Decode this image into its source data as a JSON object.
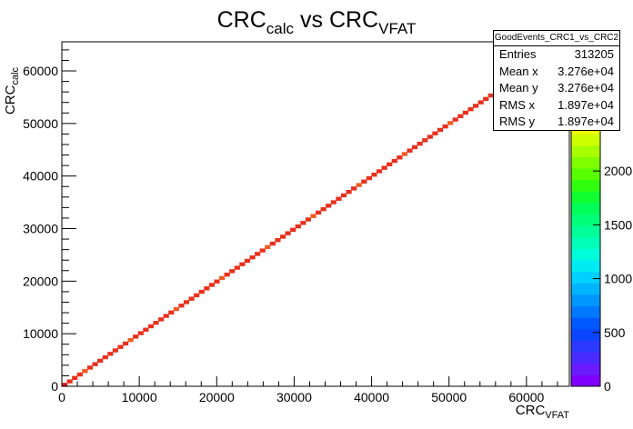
{
  "chart_data": {
    "type": "heatmap",
    "title": {
      "main": "CRC",
      "main_sub": "calc",
      "joiner": " vs ",
      "second": "CRC",
      "second_sub": "VFAT"
    },
    "xlabel": {
      "main": "CRC",
      "sub": "VFAT"
    },
    "ylabel": {
      "main": "CRC",
      "sub": "calc"
    },
    "xlim": [
      0,
      65536
    ],
    "ylim": [
      0,
      65536
    ],
    "xticks": [
      0,
      10000,
      20000,
      30000,
      40000,
      50000,
      60000
    ],
    "yticks": [
      0,
      10000,
      20000,
      30000,
      40000,
      50000,
      60000
    ],
    "xtick_labels": [
      "0",
      "10000",
      "20000",
      "30000",
      "40000",
      "50000",
      "60000"
    ],
    "ytick_labels": [
      "0",
      "10000",
      "20000",
      "30000",
      "40000",
      "50000",
      "60000"
    ],
    "nbins": 100,
    "diagonal": {
      "x_start": 0,
      "y_start": 0,
      "x_end": 65536,
      "y_end": 65536,
      "typical_count": 3100,
      "max_count": 3500
    },
    "colorbar": {
      "zlim": [
        0,
        3200
      ],
      "tick_values": [
        0,
        500,
        1000,
        1500,
        2000
      ],
      "tick_labels": [
        "0",
        "500",
        "1000",
        "1500",
        "2000"
      ],
      "colors": [
        "#8000ff",
        "#6a1cff",
        "#4a2bff",
        "#2c39ff",
        "#0b45ff",
        "#0058ff",
        "#0078ff",
        "#0096ff",
        "#00b4ff",
        "#00d0ff",
        "#00ecf5",
        "#00fcd8",
        "#00ffb8",
        "#00ff98",
        "#00ff78",
        "#00ff58",
        "#10ff30",
        "#30ff10",
        "#58ff00",
        "#80ff00",
        "#a8ff00",
        "#d0ff00",
        "#f0ff00",
        "#ffe000",
        "#ffc000",
        "#ffa000",
        "#ff8000",
        "#ff6000",
        "#ff4000",
        "#ff2000"
      ]
    },
    "grid": false,
    "legend": "none"
  },
  "stats": {
    "name": "GoodEvents_CRC1_vs_CRC2",
    "rows": [
      {
        "label": "Entries",
        "value": "313205"
      },
      {
        "label": "Mean x",
        "value": "3.276e+04"
      },
      {
        "label": "Mean y",
        "value": "3.276e+04"
      },
      {
        "label": "RMS x",
        "value": "1.897e+04"
      },
      {
        "label": "RMS y",
        "value": "1.897e+04"
      }
    ]
  },
  "colors": {
    "diagonal": "#e8301c",
    "diagonal_alt": "#f05a20",
    "diagonal_dark": "#d81818",
    "axis": "#000000"
  }
}
